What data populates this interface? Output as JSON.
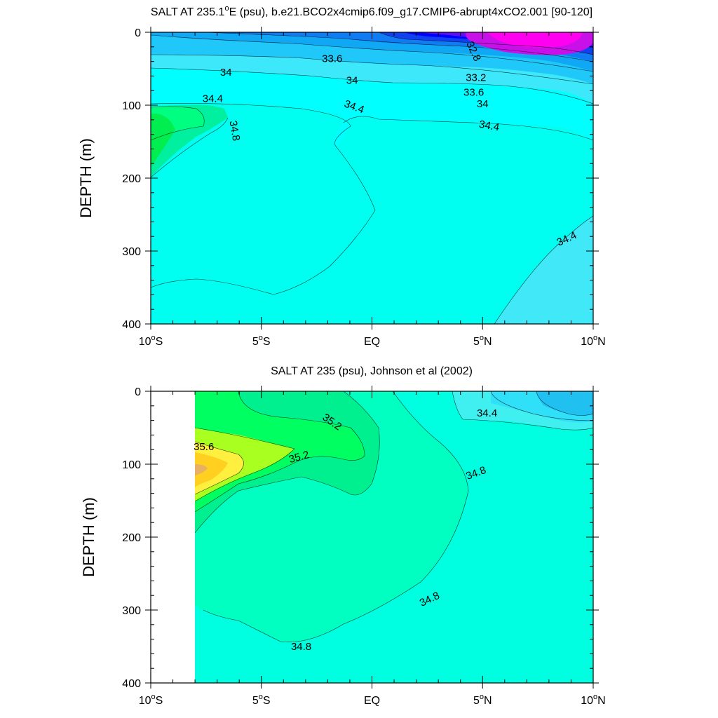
{
  "chart_data": [
    {
      "type": "contour",
      "title": "SALT AT 235.1°E (psu), b.e21.BCO2x4cmip6.f09_g17.CMIP6-abrupt4xCO2.001 [90-120]",
      "title_parts": [
        "SALT AT 235.1",
        "o",
        "E (psu), b.e21.BCO2x4cmip6.f09_g17.CMIP6-abrupt4xCO2.001 [90-120]"
      ],
      "xlabel": "",
      "ylabel": "DEPTH (m)",
      "xlim": [
        -10,
        10
      ],
      "ylim": [
        400,
        0
      ],
      "x_ticks": [
        {
          "value": -10,
          "num": "10",
          "hem": "S"
        },
        {
          "value": -5,
          "num": "5",
          "hem": "S"
        },
        {
          "value": 0,
          "num": "EQ",
          "hem": ""
        },
        {
          "value": 5,
          "num": "5",
          "hem": "N"
        },
        {
          "value": 10,
          "num": "10",
          "hem": "N"
        }
      ],
      "y_ticks": [
        "0",
        "100",
        "200",
        "300",
        "400"
      ],
      "y_tick_values": [
        0,
        100,
        200,
        300,
        400
      ],
      "contour_labels": [
        {
          "text": "33.6",
          "lon": -1.8,
          "depth": 36,
          "angle": 0
        },
        {
          "text": "32.8",
          "lon": 4.6,
          "depth": 26,
          "angle": 65
        },
        {
          "text": "34",
          "lon": -6.6,
          "depth": 55,
          "angle": 0
        },
        {
          "text": "34",
          "lon": -0.9,
          "depth": 66,
          "angle": 0
        },
        {
          "text": "33.2",
          "lon": 4.7,
          "depth": 62,
          "angle": 0
        },
        {
          "text": "33.6",
          "lon": 4.6,
          "depth": 82,
          "angle": 0
        },
        {
          "text": "34",
          "lon": 5.0,
          "depth": 98,
          "angle": 0
        },
        {
          "text": "34.4",
          "lon": -7.2,
          "depth": 91,
          "angle": 0
        },
        {
          "text": "34.4",
          "lon": -0.8,
          "depth": 102,
          "angle": 20
        },
        {
          "text": "34.4",
          "lon": 5.3,
          "depth": 128,
          "angle": 10
        },
        {
          "text": "34.8",
          "lon": -6.2,
          "depth": 135,
          "angle": 80
        },
        {
          "text": "34.4",
          "lon": 8.8,
          "depth": 283,
          "angle": -25
        }
      ]
    },
    {
      "type": "contour",
      "title": "SALT AT 235 (psu), Johnson et al (2002)",
      "title_parts": [
        "SALT AT 235 (psu), Johnson et al (2002)"
      ],
      "xlabel": "",
      "ylabel": "DEPTH (m)",
      "xlim": [
        -10,
        10
      ],
      "ylim": [
        400,
        0
      ],
      "x_ticks": [
        {
          "value": -10,
          "num": "10",
          "hem": "S"
        },
        {
          "value": -5,
          "num": "5",
          "hem": "S"
        },
        {
          "value": 0,
          "num": "EQ",
          "hem": ""
        },
        {
          "value": 5,
          "num": "5",
          "hem": "N"
        },
        {
          "value": 10,
          "num": "10",
          "hem": "N"
        }
      ],
      "y_ticks": [
        "0",
        "100",
        "200",
        "300",
        "400"
      ],
      "y_tick_values": [
        0,
        100,
        200,
        300,
        400
      ],
      "contour_labels": [
        {
          "text": "35.2",
          "lon": -1.8,
          "depth": 42,
          "angle": 35
        },
        {
          "text": "35.6",
          "lon": -7.6,
          "depth": 76,
          "angle": 0
        },
        {
          "text": "35.2",
          "lon": -3.3,
          "depth": 90,
          "angle": -15
        },
        {
          "text": "34.4",
          "lon": 5.2,
          "depth": 30,
          "angle": 0
        },
        {
          "text": "34.8",
          "lon": 4.7,
          "depth": 112,
          "angle": -20
        },
        {
          "text": "34.8",
          "lon": 2.6,
          "depth": 285,
          "angle": -25
        },
        {
          "text": "34.8",
          "lon": -3.2,
          "depth": 350,
          "angle": 0
        }
      ]
    }
  ]
}
